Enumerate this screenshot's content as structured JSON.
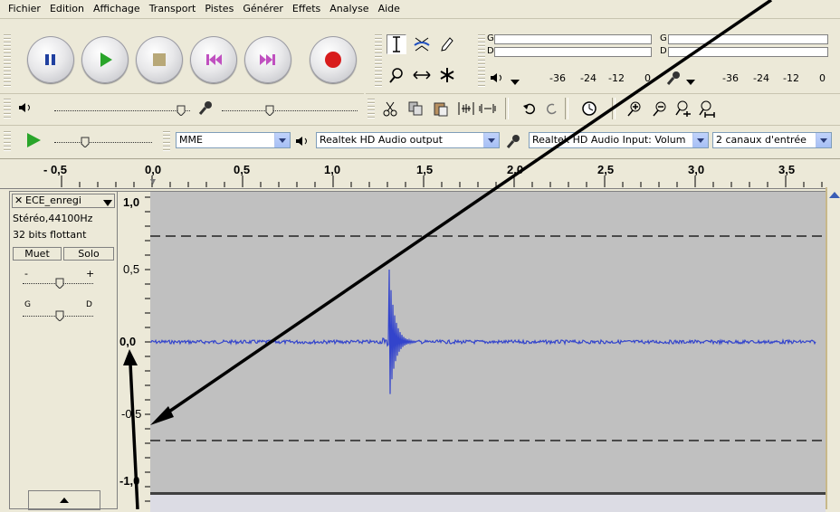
{
  "menu": [
    "Fichier",
    "Edition",
    "Affichage",
    "Transport",
    "Pistes",
    "Générer",
    "Effets",
    "Analyse",
    "Aide"
  ],
  "meters": {
    "play_channels": [
      "G",
      "D"
    ],
    "rec_channels": [
      "G",
      "D"
    ],
    "scale": [
      "-36",
      "-24",
      "-12",
      "0"
    ]
  },
  "devices": {
    "host": "MME",
    "output": "Realtek HD Audio output",
    "input": "Realtek HD Audio Input: Volum",
    "channels": "2 canaux d'entrée"
  },
  "ruler": {
    "labels": [
      "- 0,5",
      "0,0",
      "0,5",
      "1,0",
      "1,5",
      "2,0",
      "2,5",
      "3,0",
      "3,5"
    ]
  },
  "track": {
    "name": "ECE_enregi",
    "rate": "Stéréo,44100Hz",
    "format": "32 bits flottant",
    "mute": "Muet",
    "solo": "Solo",
    "gain_minus": "-",
    "gain_plus": "+",
    "pan_left": "G",
    "pan_right": "D"
  },
  "amplitude_scale": [
    "1,0",
    "0,5",
    "0,0",
    "-0,5",
    "-1,0"
  ],
  "colors": {
    "waveform": "#3344cc",
    "record": "#d81c1c",
    "play": "#2aa52a"
  }
}
